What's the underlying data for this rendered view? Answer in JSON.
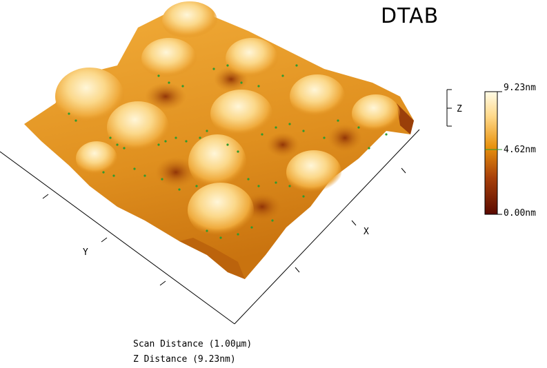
{
  "title": "DTAB",
  "axes": {
    "x": "X",
    "y": "Y",
    "z": "Z"
  },
  "colorbar": {
    "max_label": "9.23nm",
    "mid_label": "4.62nm",
    "min_label": "0.00nm",
    "colors": [
      "#5a0a00",
      "#a8400a",
      "#e8920e",
      "#ffd98a",
      "#fffbe6"
    ]
  },
  "caption": {
    "scan_distance": "Scan Distance (1.00µm)",
    "z_distance": "Z Distance (9.23nm)"
  },
  "colors": {
    "accent_dots": "#2f9a2f",
    "surface_base": "#e79a24",
    "peak": "#fff4cf"
  }
}
